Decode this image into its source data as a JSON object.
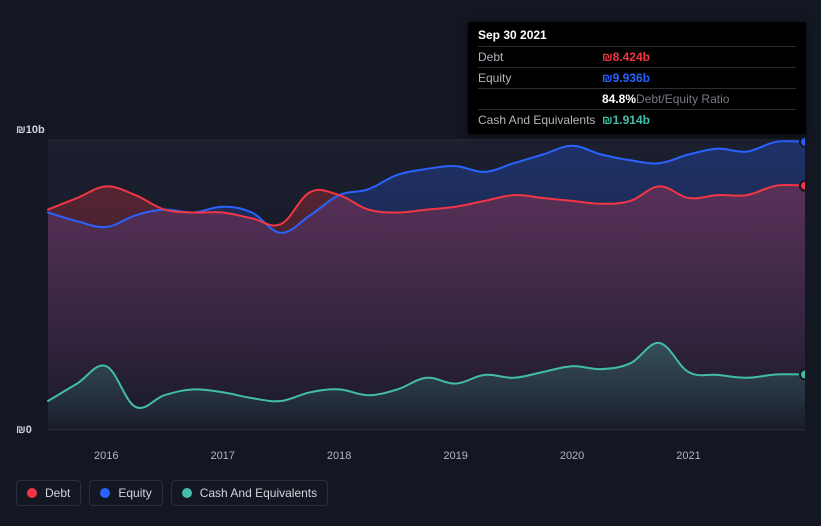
{
  "chart": {
    "type": "area",
    "background_color": "#131722",
    "plot_background_top": "#1b1f2e",
    "plot_background_bottom": "#131722",
    "grid_color": "#2a2e39",
    "text_color": "#d1d4dc",
    "muted_text_color": "#b2b5be",
    "currency_symbol": "₪",
    "ylim": [
      0,
      10
    ],
    "y_unit": "b",
    "y_ticks": [
      0,
      10
    ],
    "y_tick_labels": [
      "₪0",
      "₪10b"
    ],
    "x_years": [
      2016,
      2017,
      2018,
      2019,
      2020,
      2021
    ],
    "x_start": 2015.5,
    "x_end": 2022.0,
    "line_width": 2,
    "area_opacity": 0.28,
    "end_marker_radius": 5,
    "series": [
      {
        "key": "debt",
        "label": "Debt",
        "color": "#f23645",
        "area_gradient_top": "#f23645",
        "area_gradient_bottom_opacity": 0.02,
        "points": [
          [
            2015.5,
            7.6
          ],
          [
            2015.75,
            8.0
          ],
          [
            2016.0,
            8.4
          ],
          [
            2016.25,
            8.1
          ],
          [
            2016.5,
            7.6
          ],
          [
            2016.75,
            7.5
          ],
          [
            2017.0,
            7.5
          ],
          [
            2017.25,
            7.3
          ],
          [
            2017.5,
            7.1
          ],
          [
            2017.75,
            8.2
          ],
          [
            2018.0,
            8.1
          ],
          [
            2018.25,
            7.6
          ],
          [
            2018.5,
            7.5
          ],
          [
            2018.75,
            7.6
          ],
          [
            2019.0,
            7.7
          ],
          [
            2019.25,
            7.9
          ],
          [
            2019.5,
            8.1
          ],
          [
            2019.75,
            8.0
          ],
          [
            2020.0,
            7.9
          ],
          [
            2020.25,
            7.8
          ],
          [
            2020.5,
            7.9
          ],
          [
            2020.75,
            8.4
          ],
          [
            2021.0,
            8.0
          ],
          [
            2021.25,
            8.1
          ],
          [
            2021.5,
            8.1
          ],
          [
            2021.75,
            8.424
          ],
          [
            2022.0,
            8.424
          ]
        ]
      },
      {
        "key": "equity",
        "label": "Equity",
        "color": "#2962ff",
        "area_gradient_top": "#2962ff",
        "area_gradient_bottom_opacity": 0.02,
        "points": [
          [
            2015.5,
            7.5
          ],
          [
            2015.75,
            7.2
          ],
          [
            2016.0,
            7.0
          ],
          [
            2016.25,
            7.4
          ],
          [
            2016.5,
            7.6
          ],
          [
            2016.75,
            7.5
          ],
          [
            2017.0,
            7.7
          ],
          [
            2017.25,
            7.5
          ],
          [
            2017.5,
            6.8
          ],
          [
            2017.75,
            7.4
          ],
          [
            2018.0,
            8.1
          ],
          [
            2018.25,
            8.3
          ],
          [
            2018.5,
            8.8
          ],
          [
            2018.75,
            9.0
          ],
          [
            2019.0,
            9.1
          ],
          [
            2019.25,
            8.9
          ],
          [
            2019.5,
            9.2
          ],
          [
            2019.75,
            9.5
          ],
          [
            2020.0,
            9.8
          ],
          [
            2020.25,
            9.5
          ],
          [
            2020.5,
            9.3
          ],
          [
            2020.75,
            9.2
          ],
          [
            2021.0,
            9.5
          ],
          [
            2021.25,
            9.7
          ],
          [
            2021.5,
            9.6
          ],
          [
            2021.75,
            9.936
          ],
          [
            2022.0,
            9.936
          ]
        ]
      },
      {
        "key": "cash",
        "label": "Cash And Equivalents",
        "color": "#42bda8",
        "area_gradient_top": "#42bda8",
        "area_gradient_bottom_opacity": 0.02,
        "points": [
          [
            2015.5,
            1.0
          ],
          [
            2015.75,
            1.6
          ],
          [
            2016.0,
            2.2
          ],
          [
            2016.25,
            0.8
          ],
          [
            2016.5,
            1.2
          ],
          [
            2016.75,
            1.4
          ],
          [
            2017.0,
            1.3
          ],
          [
            2017.25,
            1.1
          ],
          [
            2017.5,
            1.0
          ],
          [
            2017.75,
            1.3
          ],
          [
            2018.0,
            1.4
          ],
          [
            2018.25,
            1.2
          ],
          [
            2018.5,
            1.4
          ],
          [
            2018.75,
            1.8
          ],
          [
            2019.0,
            1.6
          ],
          [
            2019.25,
            1.9
          ],
          [
            2019.5,
            1.8
          ],
          [
            2019.75,
            2.0
          ],
          [
            2020.0,
            2.2
          ],
          [
            2020.25,
            2.1
          ],
          [
            2020.5,
            2.3
          ],
          [
            2020.75,
            3.0
          ],
          [
            2021.0,
            2.0
          ],
          [
            2021.25,
            1.9
          ],
          [
            2021.5,
            1.8
          ],
          [
            2021.75,
            1.914
          ],
          [
            2022.0,
            1.914
          ]
        ]
      }
    ]
  },
  "tooltip": {
    "date": "Sep 30 2021",
    "rows": [
      {
        "label": "Debt",
        "value": "₪8.424b",
        "color": "#f23645"
      },
      {
        "label": "Equity",
        "value": "₪9.936b",
        "color": "#2962ff"
      },
      {
        "label": "",
        "value_primary": "84.8%",
        "value_secondary": "Debt/Equity Ratio",
        "color_primary": "#ffffff",
        "color_secondary": "#787b86"
      },
      {
        "label": "Cash And Equivalents",
        "value": "₪1.914b",
        "color": "#42bda8"
      }
    ]
  },
  "legend": {
    "items": [
      {
        "key": "debt",
        "label": "Debt",
        "color": "#f23645"
      },
      {
        "key": "equity",
        "label": "Equity",
        "color": "#2962ff"
      },
      {
        "key": "cash",
        "label": "Cash And Equivalents",
        "color": "#42bda8"
      }
    ]
  }
}
